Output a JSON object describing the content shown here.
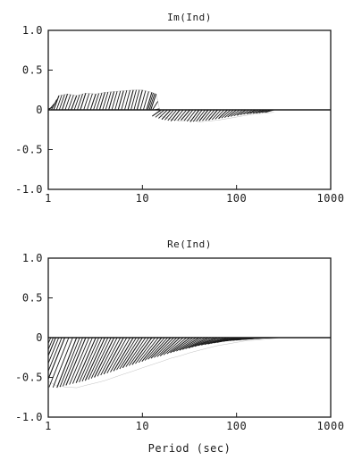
{
  "colors": {
    "ink": "#1a1a1a",
    "background": "#ffffff"
  },
  "xlabel": "Period (sec)",
  "chart_data": [
    {
      "type": "line",
      "title": "Im(Ind)",
      "xlabel": "",
      "ylabel": "",
      "xscale": "log",
      "xlim": [
        1,
        1000
      ],
      "ylim": [
        -1.0,
        1.0
      ],
      "xtick_labels": [
        "1",
        "10",
        "100",
        "1000"
      ],
      "ytick_labels": [
        "1.0",
        "0.5",
        "0",
        "-0.5",
        "-1.0"
      ],
      "grid": false,
      "fill": "hatched",
      "series": [
        {
          "x": [
            1.1,
            1.3,
            1.6,
            2.0,
            2.5,
            3.2,
            4.0,
            5.0,
            6.3,
            8.0,
            10.0,
            12.6,
            14.0,
            15.8,
            20,
            25,
            32,
            40,
            50,
            63,
            80,
            100,
            126,
            160,
            200,
            250
          ],
          "values": [
            0.03,
            0.18,
            0.2,
            0.18,
            0.21,
            0.2,
            0.22,
            0.23,
            0.24,
            0.25,
            0.25,
            0.22,
            0.2,
            -0.08,
            -0.12,
            -0.14,
            -0.13,
            -0.15,
            -0.14,
            -0.13,
            -0.11,
            -0.09,
            -0.07,
            -0.05,
            -0.04,
            -0.03
          ]
        }
      ]
    },
    {
      "type": "line",
      "title": "Re(Ind)",
      "xlabel": "Period (sec)",
      "ylabel": "",
      "xscale": "log",
      "xlim": [
        1,
        1000
      ],
      "ylim": [
        -1.0,
        1.0
      ],
      "xtick_labels": [
        "1",
        "10",
        "100",
        "1000"
      ],
      "ytick_labels": [
        "1.0",
        "0.5",
        "0",
        "-0.5",
        "-1.0"
      ],
      "grid": false,
      "fill": "hatched",
      "series": [
        {
          "x": [
            1.0,
            1.2,
            1.5,
            2.0,
            2.5,
            3.2,
            4.0,
            5.0,
            6.3,
            8.0,
            10.0,
            12.6,
            16,
            20,
            25,
            32,
            40,
            50,
            63,
            80,
            100,
            126,
            160,
            200,
            250,
            300
          ],
          "values": [
            -0.55,
            -0.6,
            -0.62,
            -0.63,
            -0.6,
            -0.57,
            -0.54,
            -0.5,
            -0.46,
            -0.42,
            -0.38,
            -0.34,
            -0.3,
            -0.26,
            -0.23,
            -0.19,
            -0.16,
            -0.13,
            -0.1,
            -0.08,
            -0.06,
            -0.04,
            -0.03,
            -0.02,
            -0.01,
            0.0
          ]
        }
      ]
    }
  ]
}
